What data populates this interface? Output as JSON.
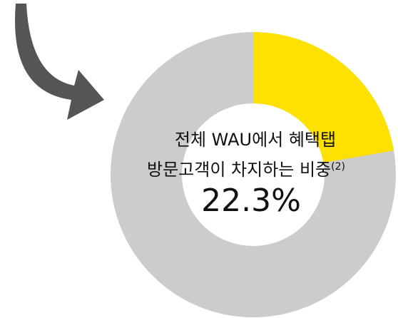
{
  "chart_data": {
    "type": "donut",
    "title": "전체 WAU에서 혜택탭",
    "subtitle": "방문고객이 차지하는 비중",
    "footnote_mark": "(2)",
    "values": [
      22.3
    ],
    "value_labels": [
      "22.3%"
    ],
    "color": "#ffe100"
  }
}
